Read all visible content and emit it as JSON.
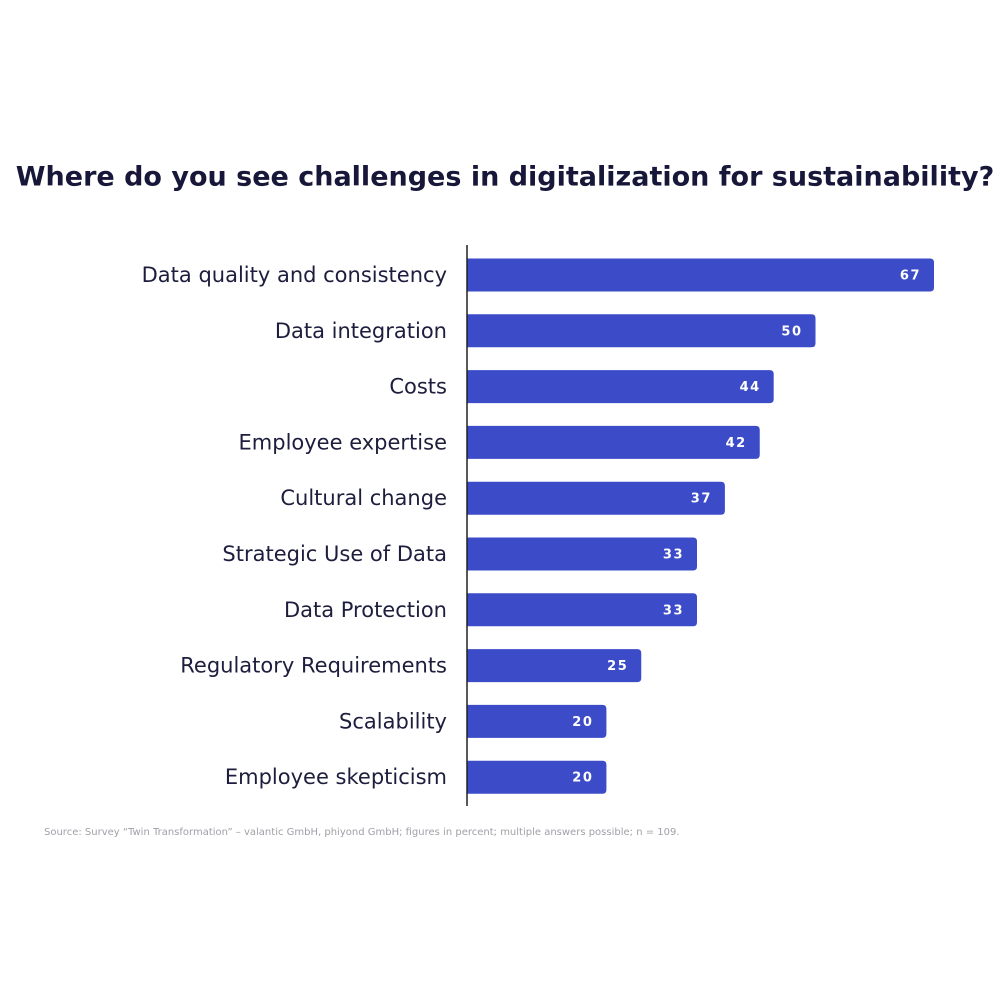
{
  "chart_data": {
    "type": "bar",
    "orientation": "horizontal",
    "title": "Where do you see challenges in digitalization for sustainability?",
    "categories": [
      "Data quality and consistency",
      "Data integration",
      "Costs",
      "Employee expertise",
      "Cultural change",
      "Strategic Use of Data",
      "Data Protection",
      "Regulatory Requirements",
      "Scalability",
      "Employee skepticism"
    ],
    "values": [
      67,
      50,
      44,
      42,
      37,
      33,
      33,
      25,
      20,
      20
    ],
    "color": "#3c4bc8",
    "source": "Source: Survey “Twin Transformation” – valantic GmbH, phiyond GmbH; figures in percent; multiple answers possible; n = 109."
  }
}
